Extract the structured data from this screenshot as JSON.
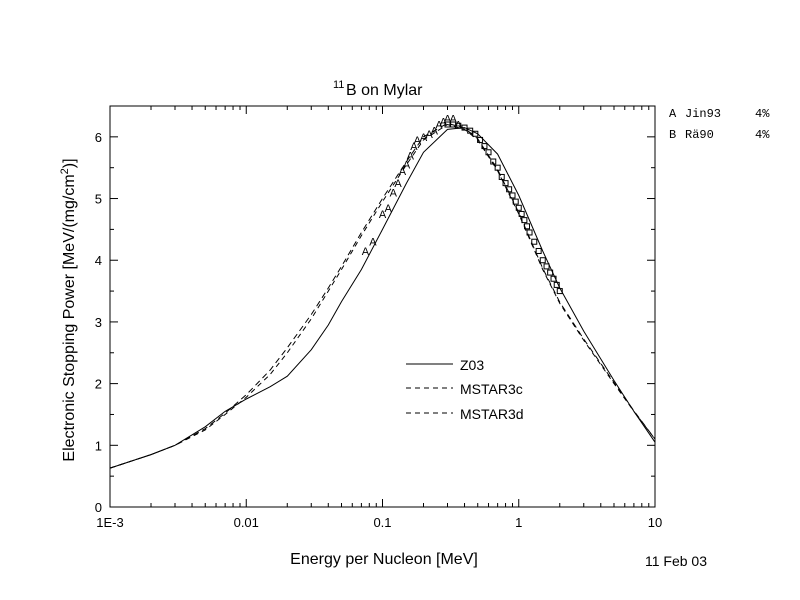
{
  "chart_data": {
    "type": "line",
    "title_superscript": "11",
    "title_text": "B on Mylar",
    "xlabel": "Energy per Nucleon [MeV]",
    "ylabel_prefix": "Electronic Stopping Power [MeV/(mg/cm",
    "ylabel_superscript": "2",
    "ylabel_suffix": ")]",
    "x_scale": "log",
    "xlim": [
      0.001,
      10
    ],
    "ylim": [
      0,
      6.5
    ],
    "x_ticks": [
      {
        "value": 0.001,
        "label": "1E-3"
      },
      {
        "value": 0.01,
        "label": "0.01"
      },
      {
        "value": 0.1,
        "label": "0.1"
      },
      {
        "value": 1,
        "label": "1"
      },
      {
        "value": 10,
        "label": "10"
      }
    ],
    "y_ticks": [
      {
        "value": 0,
        "label": "0"
      },
      {
        "value": 1,
        "label": "1"
      },
      {
        "value": 2,
        "label": "2"
      },
      {
        "value": 3,
        "label": "3"
      },
      {
        "value": 4,
        "label": "4"
      },
      {
        "value": 5,
        "label": "5"
      },
      {
        "value": 6,
        "label": "6"
      }
    ],
    "date_stamp": "11 Feb 03",
    "references": [
      {
        "marker": "A",
        "name": "Jin93",
        "error": "4%"
      },
      {
        "marker": "B",
        "name": "Rä90",
        "error": "4%"
      }
    ],
    "series": [
      {
        "name": "Z03",
        "style": "solid",
        "points": [
          [
            0.001,
            0.63
          ],
          [
            0.002,
            0.85
          ],
          [
            0.003,
            1.0
          ],
          [
            0.005,
            1.3
          ],
          [
            0.007,
            1.55
          ],
          [
            0.01,
            1.75
          ],
          [
            0.015,
            1.95
          ],
          [
            0.02,
            2.12
          ],
          [
            0.03,
            2.55
          ],
          [
            0.04,
            2.95
          ],
          [
            0.05,
            3.33
          ],
          [
            0.07,
            3.85
          ],
          [
            0.1,
            4.5
          ],
          [
            0.15,
            5.25
          ],
          [
            0.2,
            5.75
          ],
          [
            0.3,
            6.12
          ],
          [
            0.4,
            6.15
          ],
          [
            0.5,
            6.05
          ],
          [
            0.7,
            5.72
          ],
          [
            1.0,
            5.05
          ],
          [
            1.5,
            4.15
          ],
          [
            2.0,
            3.55
          ],
          [
            3.0,
            2.85
          ],
          [
            5.0,
            2.05
          ],
          [
            7.0,
            1.55
          ],
          [
            10.0,
            1.05
          ]
        ]
      },
      {
        "name": "MSTAR3c",
        "style": "dashed",
        "points": [
          [
            0.001,
            0.63
          ],
          [
            0.002,
            0.85
          ],
          [
            0.003,
            1.0
          ],
          [
            0.005,
            1.25
          ],
          [
            0.007,
            1.5
          ],
          [
            0.01,
            1.78
          ],
          [
            0.015,
            2.15
          ],
          [
            0.02,
            2.5
          ],
          [
            0.03,
            3.05
          ],
          [
            0.04,
            3.5
          ],
          [
            0.05,
            3.85
          ],
          [
            0.07,
            4.4
          ],
          [
            0.1,
            4.95
          ],
          [
            0.15,
            5.55
          ],
          [
            0.2,
            5.95
          ],
          [
            0.3,
            6.2
          ],
          [
            0.4,
            6.12
          ],
          [
            0.5,
            5.95
          ],
          [
            0.7,
            5.45
          ],
          [
            1.0,
            4.75
          ],
          [
            1.5,
            3.85
          ],
          [
            2.0,
            3.3
          ],
          [
            3.0,
            2.7
          ],
          [
            5.0,
            2.0
          ],
          [
            7.0,
            1.55
          ],
          [
            10.0,
            1.1
          ]
        ]
      },
      {
        "name": "MSTAR3d",
        "style": "dashed",
        "points": [
          [
            0.001,
            0.63
          ],
          [
            0.002,
            0.85
          ],
          [
            0.003,
            1.0
          ],
          [
            0.005,
            1.27
          ],
          [
            0.007,
            1.52
          ],
          [
            0.01,
            1.82
          ],
          [
            0.015,
            2.22
          ],
          [
            0.02,
            2.58
          ],
          [
            0.03,
            3.12
          ],
          [
            0.04,
            3.55
          ],
          [
            0.05,
            3.9
          ],
          [
            0.07,
            4.45
          ],
          [
            0.1,
            5.0
          ],
          [
            0.15,
            5.6
          ],
          [
            0.2,
            6.0
          ],
          [
            0.3,
            6.22
          ],
          [
            0.4,
            6.14
          ],
          [
            0.5,
            5.97
          ],
          [
            0.7,
            5.47
          ],
          [
            1.0,
            4.77
          ],
          [
            1.5,
            3.87
          ],
          [
            2.0,
            3.32
          ],
          [
            3.0,
            2.72
          ],
          [
            5.0,
            2.02
          ],
          [
            7.0,
            1.56
          ],
          [
            10.0,
            1.1
          ]
        ]
      }
    ],
    "data_A": [
      [
        0.075,
        4.15
      ],
      [
        0.085,
        4.3
      ],
      [
        0.1,
        4.75
      ],
      [
        0.11,
        4.85
      ],
      [
        0.12,
        5.1
      ],
      [
        0.13,
        5.25
      ],
      [
        0.14,
        5.45
      ],
      [
        0.15,
        5.55
      ],
      [
        0.16,
        5.7
      ],
      [
        0.17,
        5.85
      ],
      [
        0.18,
        5.95
      ],
      [
        0.2,
        6.0
      ],
      [
        0.22,
        6.05
      ],
      [
        0.24,
        6.1
      ],
      [
        0.26,
        6.2
      ],
      [
        0.28,
        6.25
      ],
      [
        0.3,
        6.3
      ],
      [
        0.33,
        6.3
      ],
      [
        0.36,
        6.2
      ]
    ],
    "data_B": [
      [
        0.3,
        6.2
      ],
      [
        0.33,
        6.2
      ],
      [
        0.36,
        6.18
      ],
      [
        0.4,
        6.15
      ],
      [
        0.44,
        6.1
      ],
      [
        0.48,
        6.05
      ],
      [
        0.52,
        5.95
      ],
      [
        0.56,
        5.85
      ],
      [
        0.6,
        5.75
      ],
      [
        0.65,
        5.6
      ],
      [
        0.7,
        5.5
      ],
      [
        0.75,
        5.35
      ],
      [
        0.8,
        5.25
      ],
      [
        0.85,
        5.15
      ],
      [
        0.9,
        5.05
      ],
      [
        0.95,
        4.95
      ],
      [
        1.0,
        4.85
      ],
      [
        1.05,
        4.75
      ],
      [
        1.1,
        4.65
      ],
      [
        1.15,
        4.55
      ],
      [
        1.2,
        4.45
      ],
      [
        1.3,
        4.3
      ],
      [
        1.4,
        4.15
      ],
      [
        1.5,
        4.0
      ],
      [
        1.6,
        3.9
      ],
      [
        1.7,
        3.8
      ],
      [
        1.8,
        3.7
      ],
      [
        1.9,
        3.6
      ],
      [
        2.0,
        3.5
      ]
    ]
  }
}
